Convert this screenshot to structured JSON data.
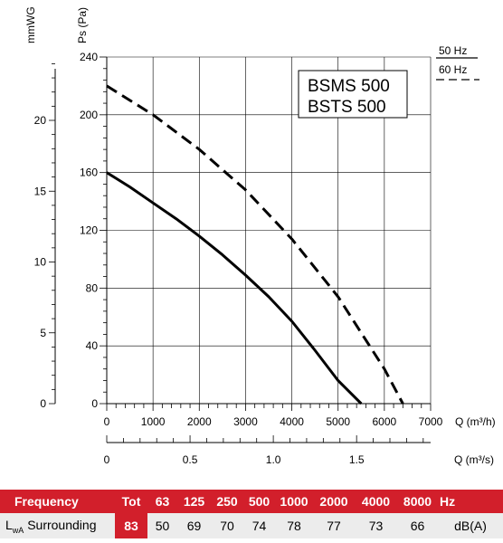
{
  "chart_data": {
    "type": "line",
    "models": [
      "BSMS 500",
      "BSTS 500"
    ],
    "legend": [
      {
        "label": "50 Hz",
        "style": "solid"
      },
      {
        "label": "60 Hz",
        "style": "dashed"
      }
    ],
    "ylabel_pa": "Ps (Pa)",
    "ylabel_mm": "mmWG",
    "xlabel_m3h": "Q (m³/h)",
    "xlabel_m3s": "Q (m³/s)",
    "y_pa_ticks": [
      "0",
      "40",
      "80",
      "120",
      "160",
      "200",
      "240"
    ],
    "y_mm_ticks": [
      "0",
      "5",
      "10",
      "15",
      "20"
    ],
    "x_m3h_ticks": [
      "0",
      "1000",
      "2000",
      "3000",
      "4000",
      "5000",
      "6000",
      "7000"
    ],
    "x_m3s_ticks": [
      "0",
      "0.5",
      "1.0",
      "1.5"
    ],
    "xlim_m3h": [
      0,
      7000
    ],
    "ylim_pa": [
      0,
      240
    ],
    "grid": true,
    "series": [
      {
        "name": "50 Hz",
        "style": "solid",
        "color": "#000000",
        "x": [
          0,
          500,
          1000,
          1500,
          2000,
          2500,
          3000,
          3500,
          4000,
          4500,
          5000,
          5500
        ],
        "y": [
          160,
          150,
          139,
          128,
          116,
          103,
          89,
          74,
          57,
          37,
          16,
          0
        ]
      },
      {
        "name": "60 Hz",
        "style": "dashed",
        "color": "#000000",
        "x": [
          0,
          1000,
          2000,
          3000,
          4000,
          5000,
          6000,
          6400
        ],
        "y": [
          220,
          200,
          176,
          148,
          114,
          74,
          24,
          0
        ]
      }
    ]
  },
  "table": {
    "header_label": "Frequency",
    "tot_label": "Tot",
    "bands": [
      "63",
      "125",
      "250",
      "500",
      "1000",
      "2000",
      "4000",
      "8000"
    ],
    "unit_header": "Hz",
    "row_label_main": "L",
    "row_label_sub": "wA",
    "row_label_rest": " Surrounding",
    "tot_value": "83",
    "values": [
      "50",
      "69",
      "70",
      "74",
      "78",
      "77",
      "73",
      "66"
    ],
    "unit": "dB(A)"
  }
}
